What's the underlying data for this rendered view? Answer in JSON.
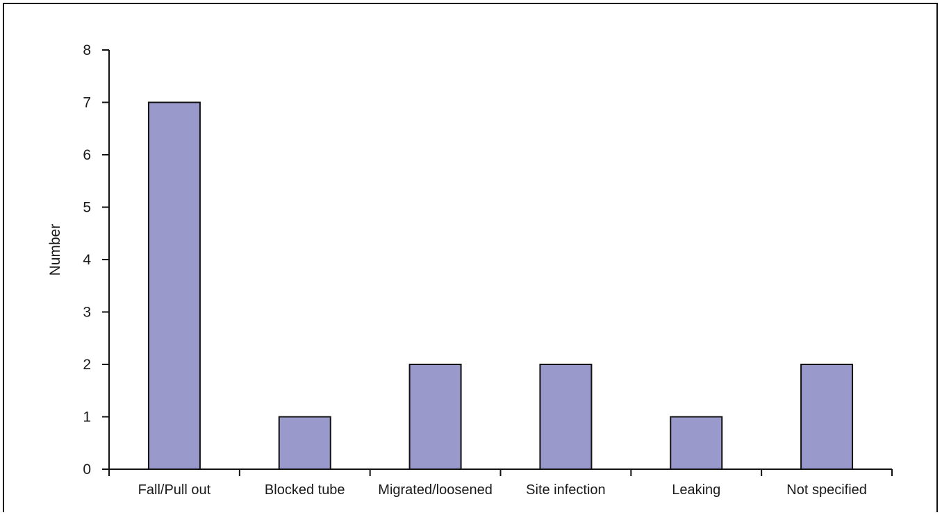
{
  "chart_data": {
    "type": "bar",
    "title": "",
    "xlabel": "",
    "ylabel": "Number",
    "categories": [
      "Fall/Pull out",
      "Blocked tube",
      "Migrated/loosened",
      "Site infection",
      "Leaking",
      "Not specified"
    ],
    "values": [
      7,
      1,
      2,
      2,
      1,
      2
    ],
    "ylim": [
      0,
      8
    ],
    "yticks": [
      "0",
      "1",
      "2",
      "3",
      "4",
      "5",
      "6",
      "7",
      "8"
    ],
    "grid": false,
    "legend": "none",
    "bar_color": "#9a99cc",
    "bar_edge_color": "#111111"
  }
}
